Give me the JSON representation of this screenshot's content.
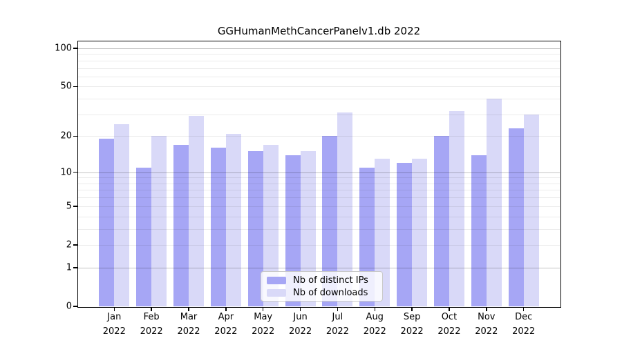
{
  "title": "GGHumanMethCancerPanelv1.db 2022",
  "chart_data": {
    "type": "bar",
    "title": "GGHumanMethCancerPanelv1.db 2022",
    "scale": "log10(1+x)",
    "ylim": [
      0,
      100
    ],
    "y_tick_labels": [
      "100",
      "50",
      "20",
      "10",
      "5",
      "2",
      "1",
      "0"
    ],
    "y_ticks": [
      100,
      50,
      20,
      10,
      5,
      2,
      1,
      0
    ],
    "grid_minor": [
      2,
      3,
      4,
      5,
      6,
      7,
      8,
      9,
      20,
      30,
      40,
      50,
      60,
      70,
      80,
      90
    ],
    "grid_major": [
      1,
      10,
      100
    ],
    "categories": [
      "Jan",
      "Feb",
      "Mar",
      "Apr",
      "May",
      "Jun",
      "Jul",
      "Aug",
      "Sep",
      "Oct",
      "Nov",
      "Dec"
    ],
    "x_year_label": "2022",
    "legend_position": "bottom-center-inside",
    "series": [
      {
        "name": "Nb of distinct IPs",
        "color": "#a6a6f5",
        "values": [
          19,
          11,
          17,
          16,
          15,
          14,
          20,
          11,
          12,
          20,
          14,
          23
        ]
      },
      {
        "name": "Nb of downloads",
        "color": "#d9d9f8",
        "values": [
          25,
          20,
          29,
          21,
          17,
          15,
          31,
          13,
          13,
          32,
          40,
          30
        ]
      }
    ]
  },
  "colors": {
    "background": "#ffffff",
    "axis": "#000000",
    "distinct_ips_bar": "#a6a6f5",
    "downloads_bar": "#d9d9f8"
  }
}
